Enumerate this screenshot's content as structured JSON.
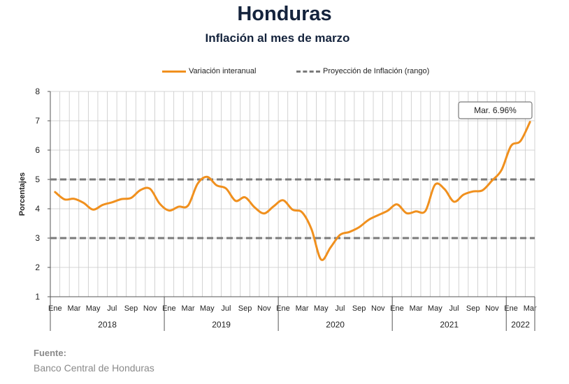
{
  "title": "Honduras",
  "subtitle": "Inflación al mes de marzo",
  "legend": {
    "series1": "Variación interanual",
    "series2": "Proyección de Inflación (rango)"
  },
  "source": {
    "label": "Fuente:",
    "text": "Banco Central de Honduras"
  },
  "colors": {
    "series": "#f0901e",
    "range": "#7a7a7a",
    "grid": "#c8c8c8"
  },
  "chart_data": {
    "type": "line",
    "title": "Honduras",
    "subtitle": "Inflación al mes de marzo",
    "ylabel": "Porcentajes",
    "xlabel": "",
    "ylim": [
      1,
      8
    ],
    "yticks": [
      1,
      2,
      3,
      4,
      5,
      6,
      7,
      8
    ],
    "grid": true,
    "legend_position": "top-center",
    "month_labels": [
      "Ene",
      "Mar",
      "May",
      "Jul",
      "Sep",
      "Nov",
      "Ene",
      "Mar",
      "May",
      "Jul",
      "Sep",
      "Nov",
      "Ene",
      "Mar",
      "May",
      "Jul",
      "Sep",
      "Nov",
      "Ene",
      "Mar",
      "May",
      "Jul",
      "Sep",
      "Nov",
      "Ene",
      "Mar"
    ],
    "year_labels": [
      "2018",
      "2019",
      "2020",
      "2021",
      "2022"
    ],
    "x": [
      "2018-01",
      "2018-02",
      "2018-03",
      "2018-04",
      "2018-05",
      "2018-06",
      "2018-07",
      "2018-08",
      "2018-09",
      "2018-10",
      "2018-11",
      "2018-12",
      "2019-01",
      "2019-02",
      "2019-03",
      "2019-04",
      "2019-05",
      "2019-06",
      "2019-07",
      "2019-08",
      "2019-09",
      "2019-10",
      "2019-11",
      "2019-12",
      "2020-01",
      "2020-02",
      "2020-03",
      "2020-04",
      "2020-05",
      "2020-06",
      "2020-07",
      "2020-08",
      "2020-09",
      "2020-10",
      "2020-11",
      "2020-12",
      "2021-01",
      "2021-02",
      "2021-03",
      "2021-04",
      "2021-05",
      "2021-06",
      "2021-07",
      "2021-08",
      "2021-09",
      "2021-10",
      "2021-11",
      "2021-12",
      "2022-01",
      "2022-02",
      "2022-03"
    ],
    "series": [
      {
        "name": "Variación interanual",
        "values": [
          4.57,
          4.32,
          4.34,
          4.2,
          3.97,
          4.13,
          4.22,
          4.33,
          4.37,
          4.64,
          4.68,
          4.18,
          3.94,
          4.07,
          4.11,
          4.85,
          5.09,
          4.8,
          4.69,
          4.27,
          4.39,
          4.05,
          3.84,
          4.08,
          4.29,
          3.97,
          3.88,
          3.3,
          2.27,
          2.68,
          3.11,
          3.21,
          3.37,
          3.62,
          3.78,
          3.93,
          4.15,
          3.85,
          3.91,
          3.93,
          4.82,
          4.67,
          4.24,
          4.48,
          4.59,
          4.63,
          4.96,
          5.32,
          6.14,
          6.31,
          6.96
        ]
      }
    ],
    "range_lines": {
      "name": "Proyección de Inflación (rango)",
      "values": [
        3,
        5
      ]
    },
    "annotation": {
      "text": "Mar. 6.96%",
      "x": "2022-03",
      "y": 6.96
    }
  }
}
